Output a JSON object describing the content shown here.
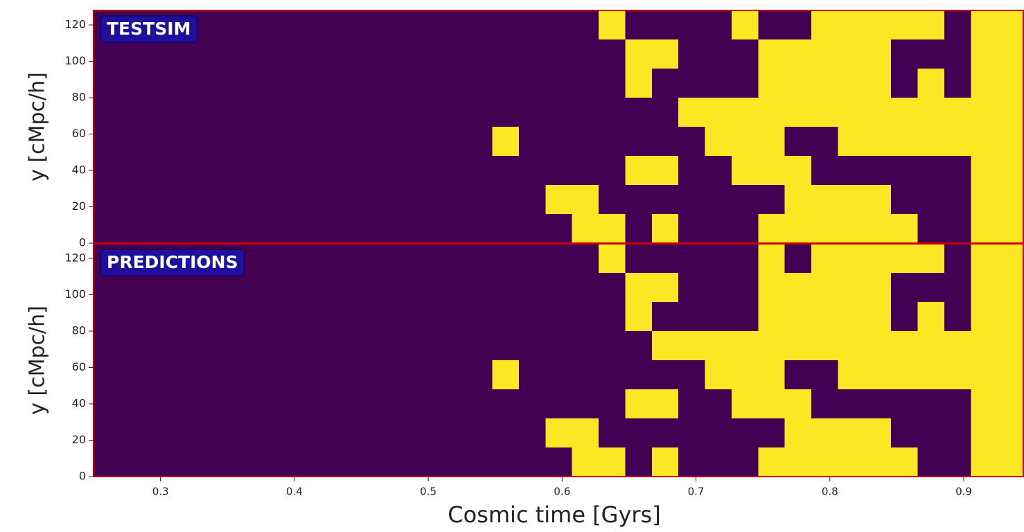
{
  "chart_data": [
    {
      "type": "heatmap",
      "title": "TESTSIM",
      "ylabel": "y [cMpc/h]",
      "xlim": [
        0.25,
        0.945
      ],
      "ylim": [
        0,
        128
      ],
      "yticks": [
        0,
        20,
        40,
        60,
        80,
        100,
        120
      ],
      "colors": [
        "#440154",
        "#fde725"
      ],
      "border_color": "#cc0000",
      "values": [
        [
          0,
          0,
          0,
          0,
          0,
          0,
          0,
          0,
          0,
          0,
          0,
          0,
          0,
          0,
          0,
          0,
          0,
          0,
          0,
          1,
          0,
          0,
          0,
          0,
          1,
          0,
          0,
          1,
          1,
          1,
          1,
          1,
          0,
          1,
          1
        ],
        [
          0,
          0,
          0,
          0,
          0,
          0,
          0,
          0,
          0,
          0,
          0,
          0,
          0,
          0,
          0,
          0,
          0,
          0,
          0,
          0,
          1,
          1,
          0,
          0,
          0,
          1,
          1,
          1,
          1,
          1,
          0,
          0,
          0,
          1,
          1
        ],
        [
          0,
          0,
          0,
          0,
          0,
          0,
          0,
          0,
          0,
          0,
          0,
          0,
          0,
          0,
          0,
          0,
          0,
          0,
          0,
          0,
          1,
          0,
          0,
          0,
          0,
          1,
          1,
          1,
          1,
          1,
          0,
          1,
          0,
          1,
          1
        ],
        [
          0,
          0,
          0,
          0,
          0,
          0,
          0,
          0,
          0,
          0,
          0,
          0,
          0,
          0,
          0,
          0,
          0,
          0,
          0,
          0,
          0,
          0,
          1,
          1,
          1,
          1,
          1,
          1,
          1,
          1,
          1,
          1,
          1,
          1,
          1
        ],
        [
          0,
          0,
          0,
          0,
          0,
          0,
          0,
          0,
          0,
          0,
          0,
          0,
          0,
          0,
          0,
          1,
          0,
          0,
          0,
          0,
          0,
          0,
          0,
          1,
          1,
          1,
          0,
          0,
          1,
          1,
          1,
          1,
          1,
          1,
          1
        ],
        [
          0,
          0,
          0,
          0,
          0,
          0,
          0,
          0,
          0,
          0,
          0,
          0,
          0,
          0,
          0,
          0,
          0,
          0,
          0,
          0,
          1,
          1,
          0,
          0,
          1,
          1,
          1,
          0,
          0,
          0,
          0,
          0,
          0,
          1,
          1
        ],
        [
          0,
          0,
          0,
          0,
          0,
          0,
          0,
          0,
          0,
          0,
          0,
          0,
          0,
          0,
          0,
          0,
          0,
          1,
          1,
          0,
          0,
          0,
          0,
          0,
          0,
          0,
          1,
          1,
          1,
          1,
          0,
          0,
          0,
          1,
          1
        ],
        [
          0,
          0,
          0,
          0,
          0,
          0,
          0,
          0,
          0,
          0,
          0,
          0,
          0,
          0,
          0,
          0,
          0,
          0,
          1,
          1,
          0,
          1,
          0,
          0,
          0,
          1,
          1,
          1,
          1,
          1,
          1,
          0,
          0,
          1,
          1
        ]
      ]
    },
    {
      "type": "heatmap",
      "title": "PREDICTIONS",
      "ylabel": "y [cMpc/h]",
      "xlabel": "Cosmic time [Gyrs]",
      "xlim": [
        0.25,
        0.945
      ],
      "ylim": [
        0,
        128
      ],
      "yticks": [
        0,
        20,
        40,
        60,
        80,
        100,
        120
      ],
      "xticks": [
        0.3,
        0.4,
        0.5,
        0.6,
        0.7,
        0.8,
        0.9
      ],
      "colors": [
        "#440154",
        "#fde725"
      ],
      "border_color": "#cc0000",
      "values": [
        [
          0,
          0,
          0,
          0,
          0,
          0,
          0,
          0,
          0,
          0,
          0,
          0,
          0,
          0,
          0,
          0,
          0,
          0,
          0,
          1,
          0,
          0,
          0,
          0,
          0,
          1,
          0,
          1,
          1,
          1,
          1,
          1,
          0,
          1,
          1
        ],
        [
          0,
          0,
          0,
          0,
          0,
          0,
          0,
          0,
          0,
          0,
          0,
          0,
          0,
          0,
          0,
          0,
          0,
          0,
          0,
          0,
          1,
          1,
          0,
          0,
          0,
          1,
          1,
          1,
          1,
          1,
          0,
          0,
          0,
          1,
          1
        ],
        [
          0,
          0,
          0,
          0,
          0,
          0,
          0,
          0,
          0,
          0,
          0,
          0,
          0,
          0,
          0,
          0,
          0,
          0,
          0,
          0,
          1,
          0,
          0,
          0,
          0,
          1,
          1,
          1,
          1,
          1,
          0,
          1,
          0,
          1,
          1
        ],
        [
          0,
          0,
          0,
          0,
          0,
          0,
          0,
          0,
          0,
          0,
          0,
          0,
          0,
          0,
          0,
          0,
          0,
          0,
          0,
          0,
          0,
          1,
          1,
          1,
          1,
          1,
          1,
          1,
          1,
          1,
          1,
          1,
          1,
          1,
          1
        ],
        [
          0,
          0,
          0,
          0,
          0,
          0,
          0,
          0,
          0,
          0,
          0,
          0,
          0,
          0,
          0,
          1,
          0,
          0,
          0,
          0,
          0,
          0,
          0,
          1,
          1,
          1,
          0,
          0,
          1,
          1,
          1,
          1,
          1,
          1,
          1
        ],
        [
          0,
          0,
          0,
          0,
          0,
          0,
          0,
          0,
          0,
          0,
          0,
          0,
          0,
          0,
          0,
          0,
          0,
          0,
          0,
          0,
          1,
          1,
          0,
          0,
          1,
          1,
          1,
          0,
          0,
          0,
          0,
          0,
          0,
          1,
          1
        ],
        [
          0,
          0,
          0,
          0,
          0,
          0,
          0,
          0,
          0,
          0,
          0,
          0,
          0,
          0,
          0,
          0,
          0,
          1,
          1,
          0,
          0,
          0,
          0,
          0,
          0,
          0,
          1,
          1,
          1,
          1,
          0,
          0,
          0,
          1,
          1
        ],
        [
          0,
          0,
          0,
          0,
          0,
          0,
          0,
          0,
          0,
          0,
          0,
          0,
          0,
          0,
          0,
          0,
          0,
          0,
          1,
          1,
          0,
          1,
          0,
          0,
          0,
          1,
          1,
          1,
          1,
          1,
          1,
          0,
          0,
          1,
          1
        ]
      ]
    }
  ]
}
